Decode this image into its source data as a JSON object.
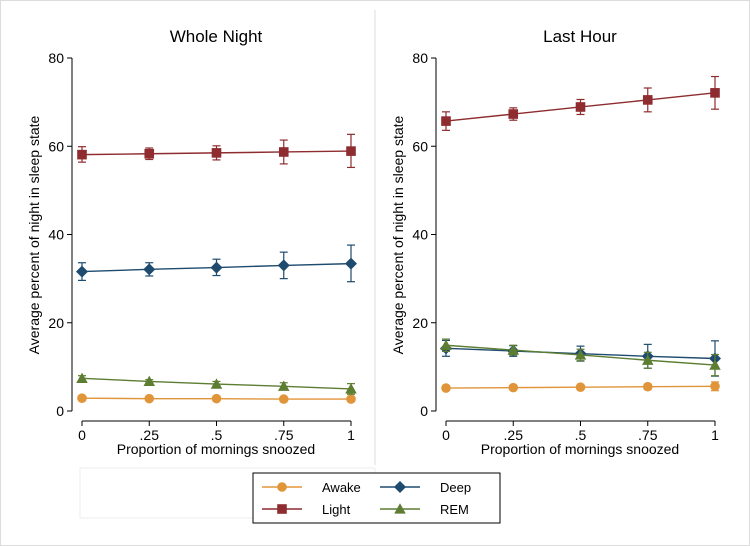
{
  "chart_data": [
    {
      "type": "line",
      "title": "Whole Night",
      "xlabel": "Proportion of mornings snoozed",
      "ylabel": "Average percent of night in sleep state",
      "x": [
        0,
        0.25,
        0.5,
        0.75,
        1
      ],
      "x_tick_labels": [
        "0",
        ".25",
        ".5",
        ".75",
        "1"
      ],
      "y_ticks": [
        0,
        20,
        40,
        60,
        80
      ],
      "y_tick_labels": [
        "0",
        "20",
        "40",
        "60",
        "80"
      ],
      "xlim": [
        0,
        1
      ],
      "ylim": [
        0,
        80
      ],
      "grid": false,
      "series": [
        {
          "name": "Awake",
          "color": "#e0953a",
          "marker": "circle",
          "values": [
            2.9,
            2.8,
            2.8,
            2.7,
            2.7
          ],
          "err_low": [
            2.5,
            2.5,
            2.4,
            2.3,
            2.2
          ],
          "err_high": [
            3.3,
            3.1,
            3.1,
            3.1,
            3.2
          ]
        },
        {
          "name": "Light",
          "color": "#8e2c2f",
          "marker": "square",
          "values": [
            58.1,
            58.3,
            58.5,
            58.7,
            58.9
          ],
          "err_low": [
            56.4,
            57.0,
            56.9,
            56.0,
            55.2
          ],
          "err_high": [
            59.9,
            59.6,
            60.1,
            61.4,
            62.7
          ]
        },
        {
          "name": "Deep",
          "color": "#1e4b6e",
          "marker": "diamond",
          "values": [
            31.6,
            32.1,
            32.5,
            33.0,
            33.4
          ],
          "err_low": [
            29.6,
            30.6,
            30.7,
            30.0,
            29.3
          ],
          "err_high": [
            33.6,
            33.6,
            34.4,
            36.0,
            37.6
          ]
        },
        {
          "name": "REM",
          "color": "#5c7d32",
          "marker": "triangle",
          "values": [
            7.4,
            6.7,
            6.1,
            5.6,
            5.0
          ],
          "err_low": [
            6.8,
            6.3,
            5.5,
            4.8,
            3.8
          ],
          "err_high": [
            8.0,
            7.1,
            6.7,
            6.4,
            6.2
          ]
        }
      ]
    },
    {
      "type": "line",
      "title": "Last Hour",
      "xlabel": "Proportion of mornings snoozed",
      "ylabel": "Average percent of night in sleep state",
      "x": [
        0,
        0.25,
        0.5,
        0.75,
        1
      ],
      "x_tick_labels": [
        "0",
        ".25",
        ".5",
        ".75",
        "1"
      ],
      "y_ticks": [
        0,
        20,
        40,
        60,
        80
      ],
      "y_tick_labels": [
        "0",
        "20",
        "40",
        "60",
        "80"
      ],
      "xlim": [
        0,
        1
      ],
      "ylim": [
        0,
        80
      ],
      "grid": false,
      "series": [
        {
          "name": "Awake",
          "color": "#e0953a",
          "marker": "circle",
          "values": [
            5.2,
            5.3,
            5.4,
            5.5,
            5.6
          ],
          "err_low": [
            4.8,
            5.0,
            5.0,
            4.9,
            4.6
          ],
          "err_high": [
            5.6,
            5.6,
            5.8,
            6.1,
            6.6
          ]
        },
        {
          "name": "Light",
          "color": "#8e2c2f",
          "marker": "square",
          "values": [
            65.7,
            67.3,
            68.9,
            70.5,
            72.1
          ],
          "err_low": [
            63.6,
            65.9,
            67.2,
            67.8,
            68.4
          ],
          "err_high": [
            67.8,
            68.7,
            70.6,
            73.2,
            75.8
          ]
        },
        {
          "name": "Deep",
          "color": "#1e4b6e",
          "marker": "diamond",
          "values": [
            14.2,
            13.6,
            13.0,
            12.4,
            11.9
          ],
          "err_low": [
            12.4,
            12.4,
            11.3,
            9.7,
            7.9
          ],
          "err_high": [
            16.0,
            14.8,
            14.7,
            15.1,
            15.9
          ]
        },
        {
          "name": "REM",
          "color": "#5c7d32",
          "marker": "triangle",
          "values": [
            14.9,
            13.8,
            12.7,
            11.5,
            10.4
          ],
          "err_low": [
            13.5,
            12.7,
            11.4,
            9.7,
            8.0
          ],
          "err_high": [
            16.3,
            14.9,
            14.0,
            13.3,
            12.8
          ]
        }
      ]
    }
  ],
  "legend": {
    "position": "bottom",
    "entries": [
      {
        "name": "Awake",
        "color": "#e0953a",
        "marker": "circle"
      },
      {
        "name": "Deep",
        "color": "#1e4b6e",
        "marker": "diamond"
      },
      {
        "name": "Light",
        "color": "#8e2c2f",
        "marker": "square"
      },
      {
        "name": "REM",
        "color": "#5c7d32",
        "marker": "triangle"
      }
    ]
  }
}
